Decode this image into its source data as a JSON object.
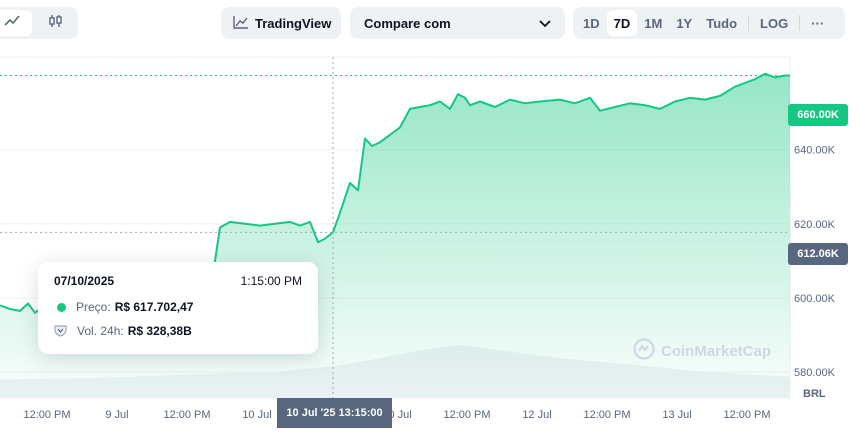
{
  "toolbar": {
    "tradingview_label": "TradingView",
    "compare_label": "Compare com",
    "ranges": [
      {
        "label": "1D",
        "active": false
      },
      {
        "label": "7D",
        "active": true
      },
      {
        "label": "1M",
        "active": false
      },
      {
        "label": "1Y",
        "active": false
      },
      {
        "label": "Tudo",
        "active": false
      }
    ],
    "log_label": "LOG",
    "more_label": "···",
    "chart_type_icons": [
      "line-chart-icon",
      "candlestick-icon"
    ]
  },
  "axes": {
    "currency": "BRL",
    "current_price_tag": "660.00K",
    "hover_price_tag": "612.06K",
    "hover_time_tag": "10 Jul '25 13:15:00"
  },
  "tooltip": {
    "date": "07/10/2025",
    "time": "1:15:00 PM",
    "price_label": "Preço:",
    "price_value": "R$ 617.702,47",
    "volume_label": "Vol. 24h:",
    "volume_value": "R$ 328,38B"
  },
  "watermark": "CoinMarketCap",
  "colors": {
    "up": "#16c784",
    "axis_text": "#58667e",
    "grid": "#eff2f5",
    "tag_gray": "#58667e"
  },
  "chart_data": {
    "type": "area",
    "y_unit": "BRL",
    "ylim": [
      573000,
      665000
    ],
    "y_ticks": [
      {
        "value": 580000,
        "label": "580.00K"
      },
      {
        "value": 600000,
        "label": "600.00K"
      },
      {
        "value": 620000,
        "label": "620.00K"
      },
      {
        "value": 640000,
        "label": "640.00K"
      }
    ],
    "x_ticks": [
      "12:00 PM",
      "9 Jul",
      "12:00 PM",
      "10 Jul",
      "10 Jul",
      "12:00 PM",
      "12 Jul",
      "12:00 PM",
      "13 Jul",
      "12:00 PM"
    ],
    "x_domain": [
      0,
      790
    ],
    "x_tick_positions": [
      47,
      117,
      187,
      257,
      397,
      467,
      537,
      607,
      677,
      747
    ],
    "hover_x": 333,
    "series": [
      {
        "x": [
          0,
          10,
          20,
          28,
          35,
          45,
          60,
          80,
          100,
          120,
          140,
          160,
          180,
          200,
          212,
          215,
          220,
          230,
          245,
          260,
          275,
          290,
          300,
          310,
          318,
          325,
          333,
          340,
          345,
          350,
          358,
          365,
          372,
          380,
          390,
          400,
          410,
          420,
          430,
          440,
          450,
          458,
          465,
          470,
          480,
          495,
          510,
          525,
          540,
          560,
          575,
          590,
          600,
          615,
          630,
          645,
          660,
          675,
          690,
          705,
          720,
          735,
          745,
          755,
          765,
          775,
          785,
          790
        ],
        "values": [
          598000,
          597000,
          596500,
          598500,
          596000,
          598000,
          599000,
          600000,
          601000,
          600500,
          602000,
          601500,
          603000,
          603500,
          604000,
          610000,
          619000,
          620500,
          620000,
          619500,
          620000,
          620500,
          619500,
          620500,
          615000,
          616000,
          617700,
          623000,
          627000,
          631000,
          629000,
          643000,
          641000,
          642000,
          644000,
          646000,
          651000,
          651500,
          652000,
          653000,
          651000,
          655000,
          654000,
          652000,
          653000,
          651500,
          653500,
          652500,
          653000,
          653500,
          652500,
          654000,
          650500,
          651500,
          652500,
          652000,
          651000,
          653000,
          654000,
          653500,
          654500,
          657000,
          658000,
          659000,
          660500,
          659500,
          660000,
          660000
        ]
      }
    ],
    "volume": {
      "x": [
        0,
        100,
        200,
        280,
        333,
        380,
        420,
        460,
        500,
        560,
        620,
        700,
        790
      ],
      "values": [
        0.35,
        0.38,
        0.45,
        0.5,
        0.6,
        0.75,
        0.9,
        1.0,
        0.9,
        0.75,
        0.65,
        0.5,
        0.4
      ]
    }
  }
}
